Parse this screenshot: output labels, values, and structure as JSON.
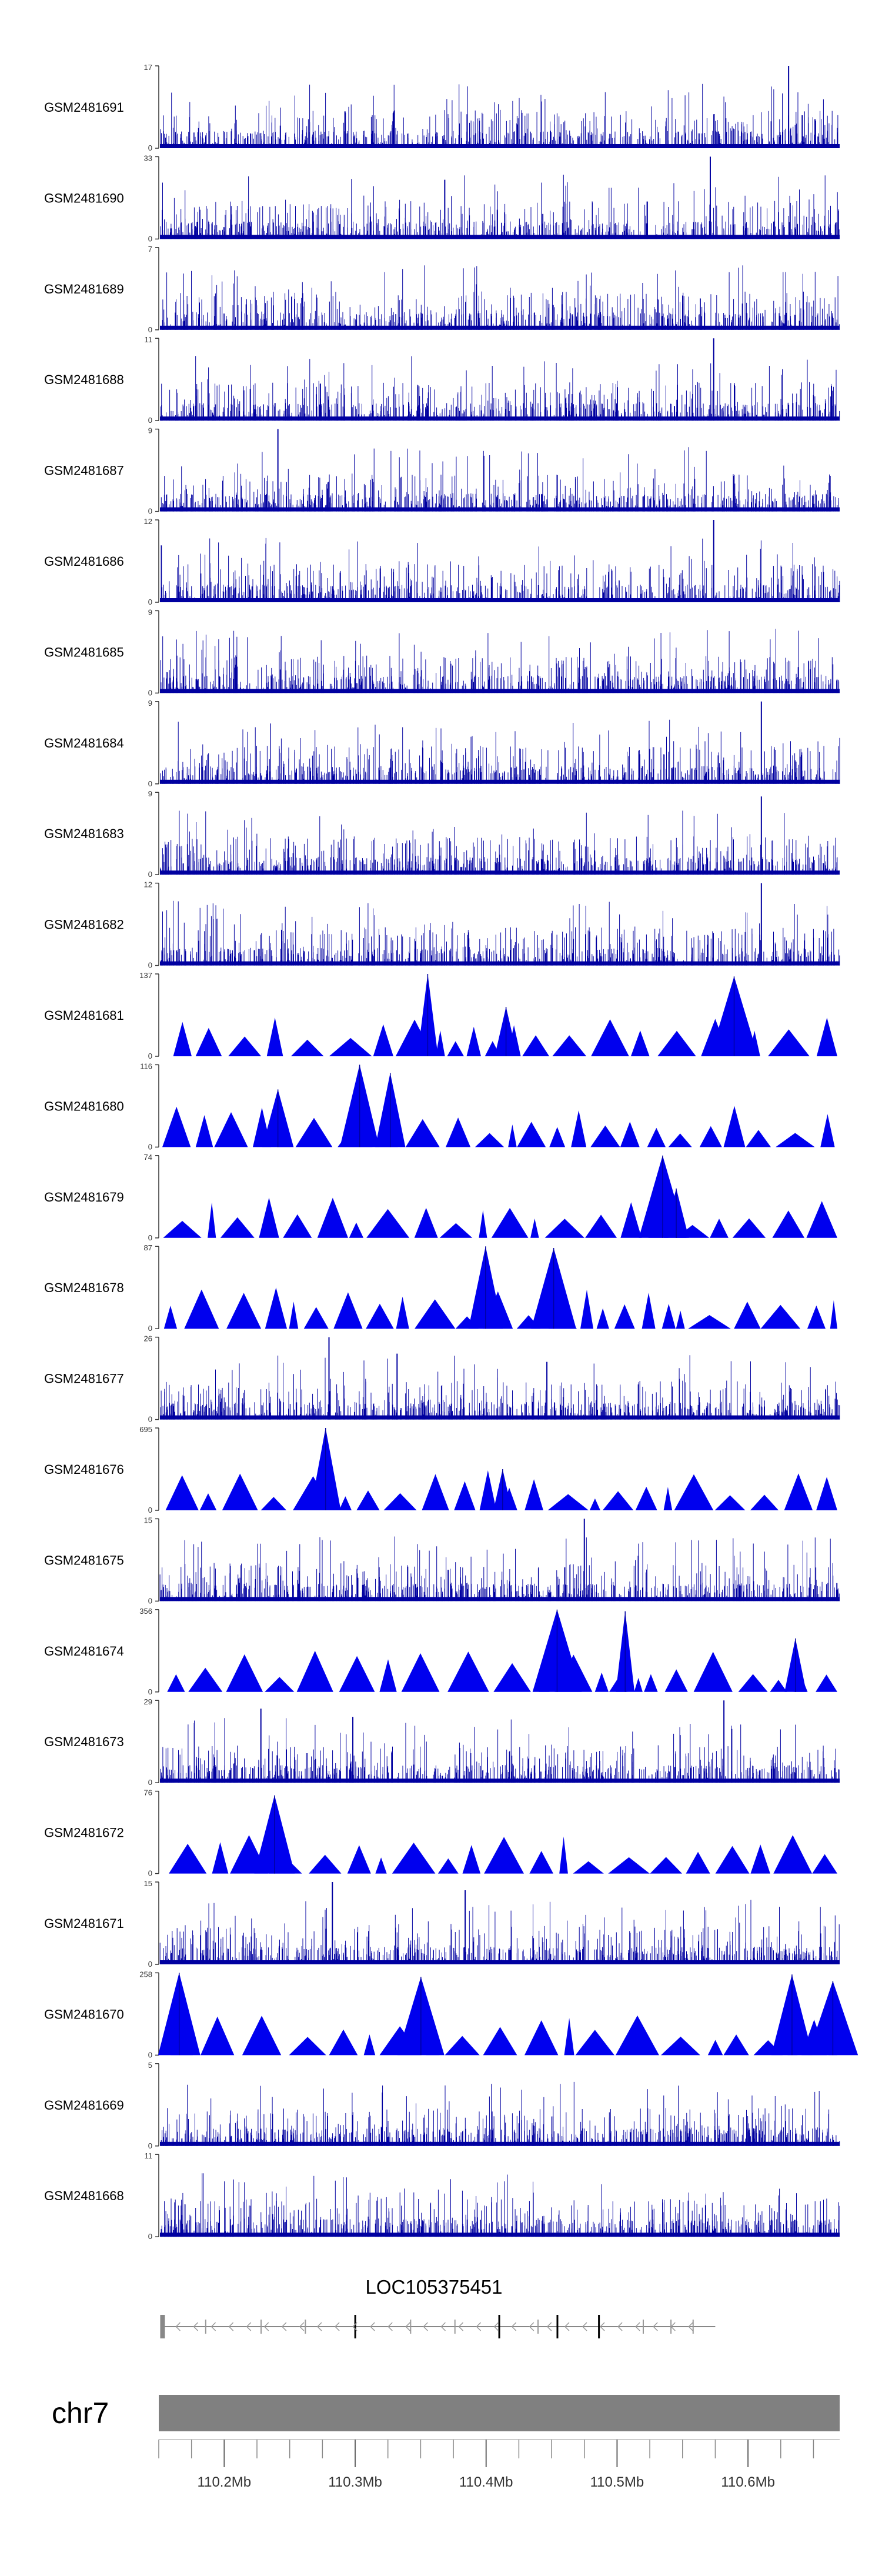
{
  "chart_data": {
    "type": "genome-coverage-tracks",
    "title": "",
    "chromosome": "chr7",
    "xlim": [
      110.15,
      110.67
    ],
    "x_unit": "Mb",
    "x_ticks": [
      {
        "value": 110.2,
        "label": "110.2Mb"
      },
      {
        "value": 110.3,
        "label": "110.3Mb"
      },
      {
        "value": 110.4,
        "label": "110.4Mb"
      },
      {
        "value": 110.5,
        "label": "110.5Mb"
      },
      {
        "value": 110.6,
        "label": "110.6Mb"
      }
    ],
    "gene": {
      "name": "LOC105375451",
      "start": 110.152,
      "end": 110.575,
      "strand": "-"
    },
    "tracks": [
      {
        "name": "GSM2481691",
        "ymax": "17",
        "ymin": "0",
        "style": "dense",
        "peaks": [
          {
            "x": 0.925,
            "h": 1.0
          },
          {
            "x": 0.945,
            "h": 0.4
          }
        ]
      },
      {
        "name": "GSM2481690",
        "ymax": "33",
        "ymin": "0",
        "style": "dense",
        "peaks": [
          {
            "x": 0.42,
            "h": 0.72
          },
          {
            "x": 0.81,
            "h": 1.0
          }
        ]
      },
      {
        "name": "GSM2481689",
        "ymax": "7",
        "ymin": "0",
        "style": "dense",
        "peaks": []
      },
      {
        "name": "GSM2481688",
        "ymax": "11",
        "ymin": "0",
        "style": "dense",
        "peaks": [
          {
            "x": 0.815,
            "h": 1.0
          }
        ]
      },
      {
        "name": "GSM2481687",
        "ymax": "9",
        "ymin": "0",
        "style": "dense",
        "peaks": [
          {
            "x": 0.175,
            "h": 1.0
          }
        ]
      },
      {
        "name": "GSM2481686",
        "ymax": "12",
        "ymin": "0",
        "style": "dense",
        "peaks": [
          {
            "x": 0.815,
            "h": 1.0
          }
        ]
      },
      {
        "name": "GSM2481685",
        "ymax": "9",
        "ymin": "0",
        "style": "dense",
        "peaks": []
      },
      {
        "name": "GSM2481684",
        "ymax": "9",
        "ymin": "0",
        "style": "dense",
        "peaks": [
          {
            "x": 0.885,
            "h": 1.0
          }
        ]
      },
      {
        "name": "GSM2481683",
        "ymax": "9",
        "ymin": "0",
        "style": "dense",
        "peaks": [
          {
            "x": 0.885,
            "h": 0.95
          }
        ]
      },
      {
        "name": "GSM2481682",
        "ymax": "12",
        "ymin": "0",
        "style": "dense",
        "peaks": [
          {
            "x": 0.885,
            "h": 1.0
          }
        ]
      },
      {
        "name": "GSM2481681",
        "ymax": "137",
        "ymin": "0",
        "style": "sparse",
        "peaks": [
          {
            "x": 0.395,
            "h": 1.0
          },
          {
            "x": 0.845,
            "h": 0.97
          },
          {
            "x": 0.51,
            "h": 0.6
          }
        ]
      },
      {
        "name": "GSM2481680",
        "ymax": "116",
        "ymin": "0",
        "style": "sparse",
        "peaks": [
          {
            "x": 0.295,
            "h": 1.0
          },
          {
            "x": 0.34,
            "h": 0.9
          },
          {
            "x": 0.175,
            "h": 0.7
          }
        ]
      },
      {
        "name": "GSM2481679",
        "ymax": "74",
        "ymin": "0",
        "style": "sparse",
        "peaks": [
          {
            "x": 0.74,
            "h": 1.0
          },
          {
            "x": 0.76,
            "h": 0.6
          }
        ]
      },
      {
        "name": "GSM2481678",
        "ymax": "87",
        "ymin": "0",
        "style": "sparse",
        "peaks": [
          {
            "x": 0.48,
            "h": 1.0
          },
          {
            "x": 0.58,
            "h": 0.98
          }
        ]
      },
      {
        "name": "GSM2481677",
        "ymax": "26",
        "ymin": "0",
        "style": "dense",
        "peaks": [
          {
            "x": 0.25,
            "h": 1.0
          },
          {
            "x": 0.35,
            "h": 0.8
          },
          {
            "x": 0.57,
            "h": 0.7
          }
        ]
      },
      {
        "name": "GSM2481676",
        "ymax": "695",
        "ymin": "0",
        "style": "sparse",
        "peaks": [
          {
            "x": 0.245,
            "h": 1.0
          },
          {
            "x": 0.505,
            "h": 0.5
          }
        ]
      },
      {
        "name": "GSM2481675",
        "ymax": "15",
        "ymin": "0",
        "style": "dense",
        "peaks": [
          {
            "x": 0.625,
            "h": 1.0
          }
        ]
      },
      {
        "name": "GSM2481674",
        "ymax": "356",
        "ymin": "0",
        "style": "sparse",
        "peaks": [
          {
            "x": 0.585,
            "h": 1.0
          },
          {
            "x": 0.685,
            "h": 0.98
          },
          {
            "x": 0.935,
            "h": 0.65
          }
        ]
      },
      {
        "name": "GSM2481673",
        "ymax": "29",
        "ymin": "0",
        "style": "dense",
        "peaks": [
          {
            "x": 0.83,
            "h": 1.0
          },
          {
            "x": 0.15,
            "h": 0.9
          },
          {
            "x": 0.285,
            "h": 0.8
          }
        ]
      },
      {
        "name": "GSM2481672",
        "ymax": "76",
        "ymin": "0",
        "style": "sparse",
        "peaks": [
          {
            "x": 0.17,
            "h": 0.95
          }
        ]
      },
      {
        "name": "GSM2481671",
        "ymax": "15",
        "ymin": "0",
        "style": "dense",
        "peaks": [
          {
            "x": 0.255,
            "h": 1.0
          },
          {
            "x": 0.45,
            "h": 0.9
          }
        ]
      },
      {
        "name": "GSM2481670",
        "ymax": "258",
        "ymin": "0",
        "style": "sparse",
        "peaks": [
          {
            "x": 0.03,
            "h": 1.0
          },
          {
            "x": 0.385,
            "h": 0.95
          },
          {
            "x": 0.93,
            "h": 0.98
          },
          {
            "x": 0.99,
            "h": 0.9
          }
        ]
      },
      {
        "name": "GSM2481669",
        "ymax": "5",
        "ymin": "0",
        "style": "dense",
        "peaks": []
      },
      {
        "name": "GSM2481668",
        "ymax": "11",
        "ymin": "0",
        "style": "dense",
        "peaks": []
      }
    ],
    "colors": {
      "dense": "#0000a0",
      "sparse": "#0000ee",
      "axis": "#333333",
      "ideogram": "#808080"
    }
  }
}
